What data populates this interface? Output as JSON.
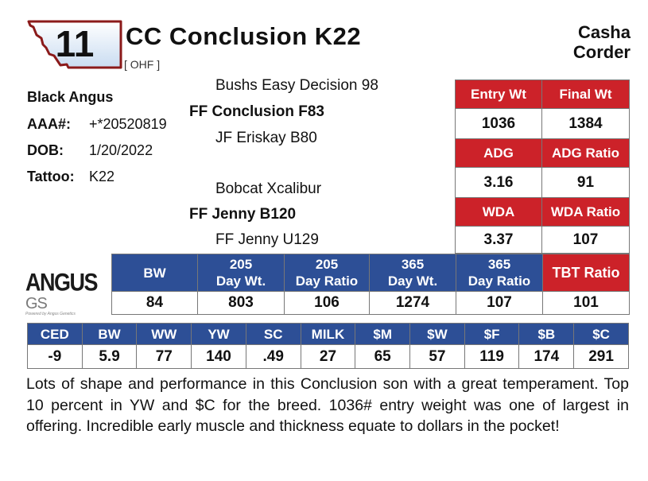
{
  "lot": {
    "number": "11",
    "name": "CC Conclusion K22",
    "tag": "[ OHF ]"
  },
  "consignor": {
    "line1": "Casha",
    "line2": "Corder"
  },
  "info": {
    "breed": "Black Angus",
    "aaa_label": "AAA#:",
    "aaa_value": "+*20520819",
    "dob_label": "DOB:",
    "dob_value": "1/20/2022",
    "tattoo_label": "Tattoo:",
    "tattoo_value": "K22"
  },
  "pedigree": {
    "sire_sire": "Bushs Easy Decision 98",
    "sire": "FF Conclusion F83",
    "sire_dam": "JF Eriskay B80",
    "dam_sire": "Bobcat Xcalibur",
    "dam": "FF Jenny B120",
    "dam_dam": "FF Jenny U129"
  },
  "performance": {
    "entry_wt_label": "Entry Wt",
    "final_wt_label": "Final Wt",
    "entry_wt": "1036",
    "final_wt": "1384",
    "adg_label": "ADG",
    "adg_ratio_label": "ADG Ratio",
    "adg": "3.16",
    "adg_ratio": "91",
    "wda_label": "WDA",
    "wda_ratio_label": "WDA Ratio",
    "wda": "3.37",
    "wda_ratio": "107"
  },
  "weights": {
    "headers": [
      [
        "BW",
        ""
      ],
      [
        "205",
        "Day Wt."
      ],
      [
        "205",
        "Day Ratio"
      ],
      [
        "365",
        "Day Wt."
      ],
      [
        "365",
        "Day Ratio"
      ]
    ],
    "tbt_label": "TBT Ratio",
    "values": [
      "84",
      "803",
      "106",
      "1274",
      "107",
      "101"
    ]
  },
  "epds": {
    "headers": [
      "CED",
      "BW",
      "WW",
      "YW",
      "SC",
      "MILK",
      "$M",
      "$W",
      "$F",
      "$B",
      "$C"
    ],
    "values": [
      "-9",
      "5.9",
      "77",
      "140",
      ".49",
      "27",
      "65",
      "57",
      "119",
      "174",
      "291"
    ]
  },
  "logo": {
    "text": "ANGUS",
    "suffix": "GS",
    "tagline": "Powered by Angus Genetics"
  },
  "description": "Lots of shape and performance in this Conclusion son with a great temperament. Top 10 percent in YW and $C for the breed. 1036# entry weight was one of largest in offering. Incredible early muscle and thickness equate to dollars in the pocket!",
  "colors": {
    "red": "#cc2229",
    "blue": "#2d4f96",
    "map_fill": "#dce9f7",
    "map_stroke": "#8b1a1a"
  }
}
